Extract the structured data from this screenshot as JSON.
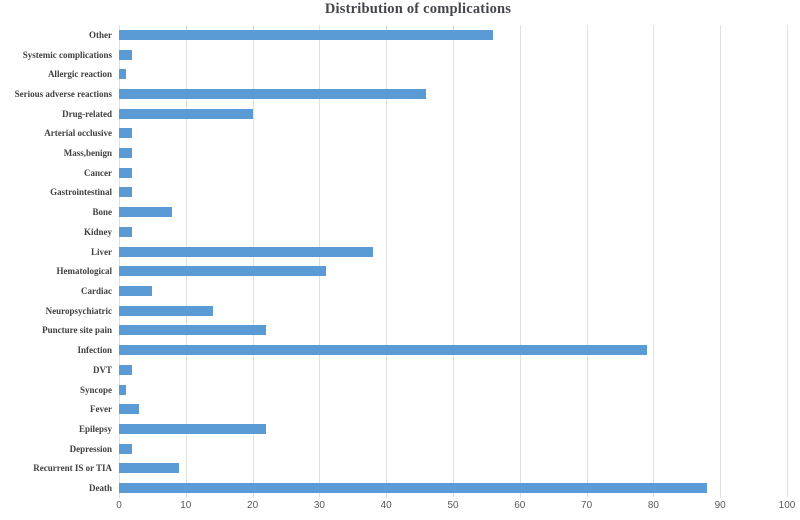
{
  "title": "Distribution of complications",
  "chart_data": {
    "type": "bar",
    "orientation": "horizontal",
    "title": "Distribution of complications",
    "categories": [
      "Other",
      "Systemic complications",
      "Allergic reaction",
      "Serious adverse reactions",
      "Drug-related",
      "Arterial occlusive",
      "Mass,benign",
      "Cancer",
      "Gastrointestinal",
      "Bone",
      "Kidney",
      "Liver",
      "Hematological",
      "Cardiac",
      "Neuropsychiatric",
      "Puncture site pain",
      "Infection",
      "DVT",
      "Syncope",
      "Fever",
      "Epilepsy",
      "Depression",
      "Recurrent IS or TIA",
      "Death"
    ],
    "values": [
      56,
      2,
      1,
      46,
      20,
      2,
      2,
      2,
      2,
      8,
      2,
      38,
      31,
      5,
      14,
      22,
      79,
      2,
      1,
      3,
      22,
      2,
      9,
      88
    ],
    "xlabel": "",
    "ylabel": "",
    "xlim": [
      0,
      100
    ],
    "xticks": [
      0,
      10,
      20,
      30,
      40,
      50,
      60,
      70,
      80,
      90,
      100
    ],
    "grid": "vertical-gridlines-on",
    "legend": "none",
    "colors": {
      "bar": "#5B9BD5",
      "gridline": "#E0E0E0",
      "title_text": "#44464B",
      "category_text": "#404040",
      "tick_text": "#595959"
    }
  }
}
